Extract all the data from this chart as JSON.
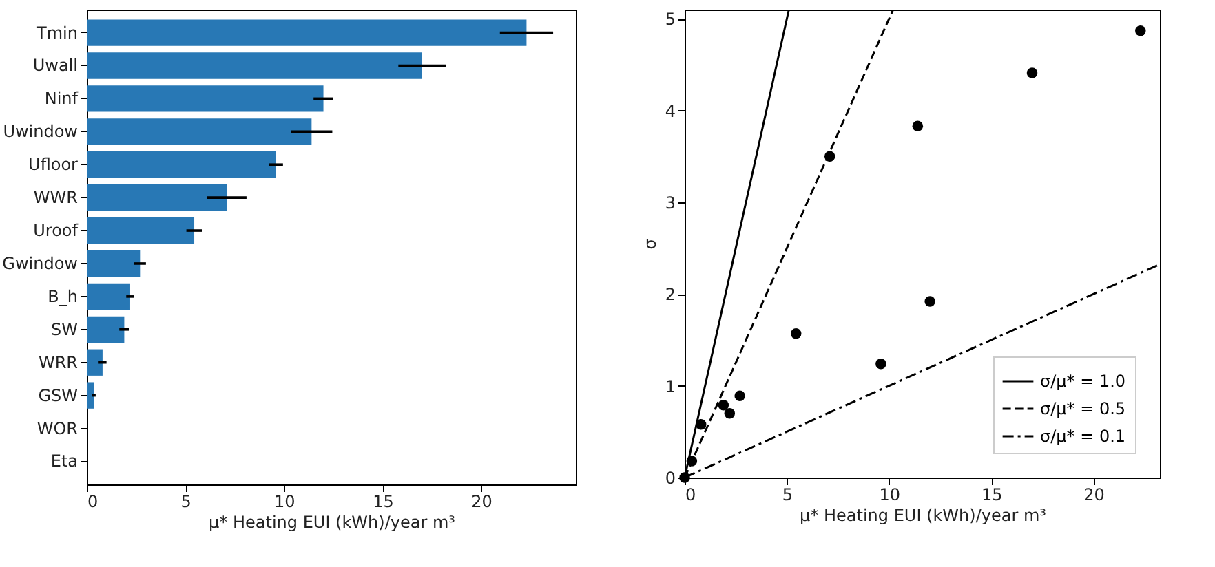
{
  "chart_data": [
    {
      "type": "bar",
      "orientation": "horizontal",
      "categories": [
        "Tmin",
        "Uwall",
        "Ninf",
        "Uwindow",
        "Ufloor",
        "WWR",
        "Uroof",
        "Gwindow",
        "B_h",
        "SW",
        "WRR",
        "GSW",
        "WOR",
        "Eta"
      ],
      "values": [
        22.3,
        17.0,
        12.0,
        11.4,
        9.6,
        7.1,
        5.45,
        2.7,
        2.2,
        1.9,
        0.8,
        0.35,
        0,
        0
      ],
      "errors": [
        1.35,
        1.2,
        0.5,
        1.05,
        0.35,
        1.0,
        0.4,
        0.3,
        0.2,
        0.25,
        0.2,
        0.1,
        0,
        0
      ],
      "color": "#2878b5",
      "xlim": [
        0,
        24.8
      ],
      "xticks": [
        0,
        5,
        10,
        15,
        20
      ],
      "xlabel": "μ* Heating EUI (kWh)/year m³",
      "grid": false
    },
    {
      "type": "scatter",
      "xlim": [
        0,
        23.25
      ],
      "ylim": [
        0,
        5.1
      ],
      "xticks": [
        0,
        5,
        10,
        15,
        20
      ],
      "yticks": [
        0,
        1,
        2,
        3,
        4,
        5
      ],
      "xlabel": "μ* Heating EUI (kWh)/year m³",
      "ylabel": "σ",
      "grid": false,
      "legend": "bottom right",
      "series": [
        {
          "type": "scatter",
          "color": "#000000",
          "marker": "circle",
          "x": [
            22.3,
            17.0,
            12.0,
            11.4,
            9.6,
            7.1,
            5.45,
            2.7,
            2.2,
            1.9,
            0.8,
            0.35,
            0
          ],
          "values": [
            4.87,
            4.41,
            1.92,
            3.83,
            1.24,
            3.5,
            1.57,
            0.89,
            0.7,
            0.79,
            0.58,
            0.18,
            0
          ]
        },
        {
          "type": "line",
          "name": "σ/μ* = 1.0",
          "color": "#000000",
          "line_style": "solid",
          "x": [
            0,
            5.1
          ],
          "values": [
            0,
            5.1
          ]
        },
        {
          "type": "line",
          "name": "σ/μ* = 0.5",
          "color": "#000000",
          "line_style": "dashed",
          "x": [
            0,
            10.2
          ],
          "values": [
            0,
            5.1
          ]
        },
        {
          "type": "line",
          "name": "σ/μ* = 0.1",
          "color": "#000000",
          "line_style": "dashdot",
          "x": [
            0,
            23.2
          ],
          "values": [
            0,
            2.32
          ]
        }
      ]
    }
  ]
}
